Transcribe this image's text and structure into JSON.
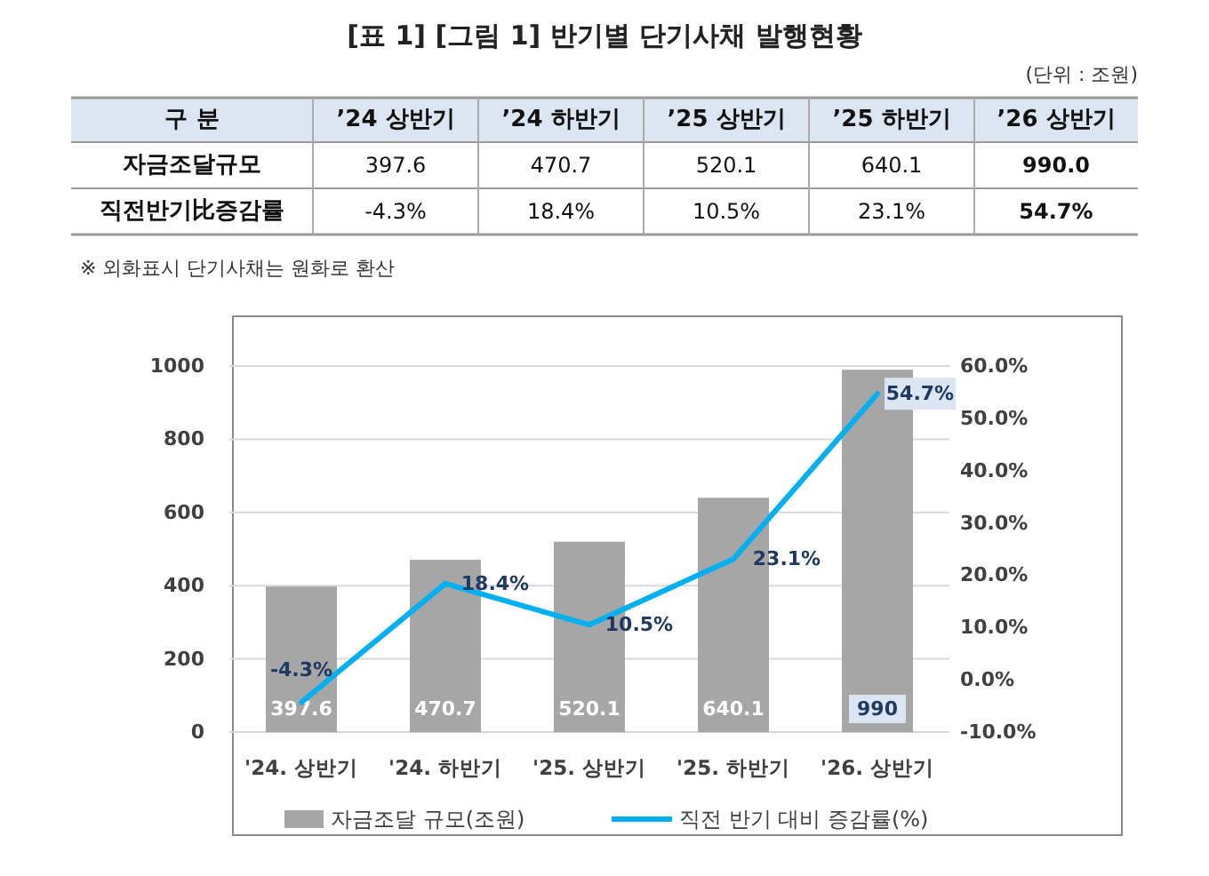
{
  "chart_data": {
    "type": "bar",
    "title": "[표 1] [그림 1] 반기별 단기사채 발행현황",
    "annotations": [
      "(단위 : 조원)",
      "구 분",
      "’24 상반기",
      "’24 하반기",
      "’25 상반기",
      "’25 하반기",
      "’26 상반기",
      "자금조달규모",
      "397.6",
      "470.7",
      "520.1",
      "640.1",
      "990.0",
      "직전반기比증감률",
      "-4.3%",
      "18.4%",
      "10.5%",
      "23.1%",
      "54.7%",
      "※ 외화표시 단기사채는 원화로 환산"
    ],
    "categories": [
      "'24. 상반기",
      "'24. 하반기",
      "'25. 상반기",
      "'25. 하반기",
      "'26. 상반기"
    ],
    "series": [
      {
        "name": "자금조달 규모(조원)",
        "color": "#a6a6a6",
        "values": [
          397.6,
          470.7,
          520.1,
          640.1,
          990
        ],
        "value_labels": [
          "397.6",
          "470.7",
          "520.1",
          "640.1",
          "990"
        ]
      },
      {
        "name": "직전 반기 대비 증감률(%)",
        "type": "line",
        "axis": "y2",
        "color": "#00b0f0",
        "values": [
          -4.3,
          18.4,
          10.5,
          23.1,
          54.7
        ],
        "value_labels": [
          "-4.3%",
          "18.4%",
          "10.5%",
          "23.1%",
          "54.7%"
        ]
      }
    ],
    "ylim": [
      0,
      1000
    ],
    "yticks": [
      0,
      200,
      400,
      600,
      800,
      1000
    ],
    "y2lim": [
      -10,
      60
    ],
    "y2ticks": [
      {
        "value": -10,
        "label": "-10.0%"
      },
      {
        "value": 0,
        "label": "0.0%"
      },
      {
        "value": 10,
        "label": "10.0%"
      },
      {
        "value": 20,
        "label": "20.0%"
      },
      {
        "value": 30,
        "label": "30.0%"
      },
      {
        "value": 40,
        "label": "40.0%"
      },
      {
        "value": 50,
        "label": "50.0%"
      },
      {
        "value": 60,
        "label": "60.0%"
      }
    ],
    "grid": "y",
    "legend": "bottom",
    "line_style": "solid"
  }
}
